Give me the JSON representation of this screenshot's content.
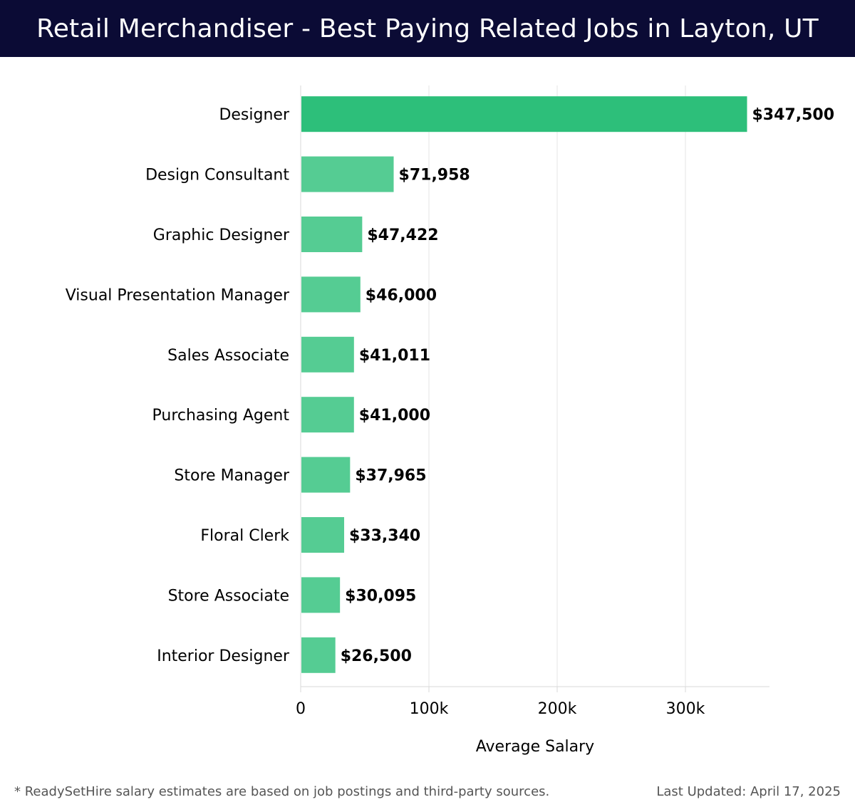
{
  "header": {
    "title": "Retail Merchandiser - Best Paying Related Jobs in Layton, UT"
  },
  "chart_data": {
    "type": "bar",
    "orientation": "horizontal",
    "categories": [
      "Designer",
      "Design Consultant",
      "Graphic Designer",
      "Visual Presentation Manager",
      "Sales Associate",
      "Purchasing Agent",
      "Store Manager",
      "Floral Clerk",
      "Store Associate",
      "Interior Designer"
    ],
    "values": [
      347500,
      71958,
      47422,
      46000,
      41011,
      41000,
      37965,
      33340,
      30095,
      26500
    ],
    "value_labels": [
      "$347,500",
      "$71,958",
      "$47,422",
      "$46,000",
      "$41,011",
      "$41,000",
      "$37,965",
      "$33,340",
      "$30,095",
      "$26,500"
    ],
    "xlabel": "Average Salary",
    "ylabel": "",
    "xlim": [
      0,
      365000
    ],
    "xticks": [
      0,
      100000,
      200000,
      300000
    ],
    "xtick_labels": [
      "0",
      "100k",
      "200k",
      "300k"
    ],
    "grid": "vertical",
    "colors": {
      "highlight": "#2dbf7a",
      "bar": "#55cc93",
      "grid": "#e6e6e6",
      "text": "#000000"
    }
  },
  "footer": {
    "note": "* ReadySetHire salary estimates are based on job postings and third-party sources.",
    "updated": "Last Updated: April 17, 2025"
  }
}
